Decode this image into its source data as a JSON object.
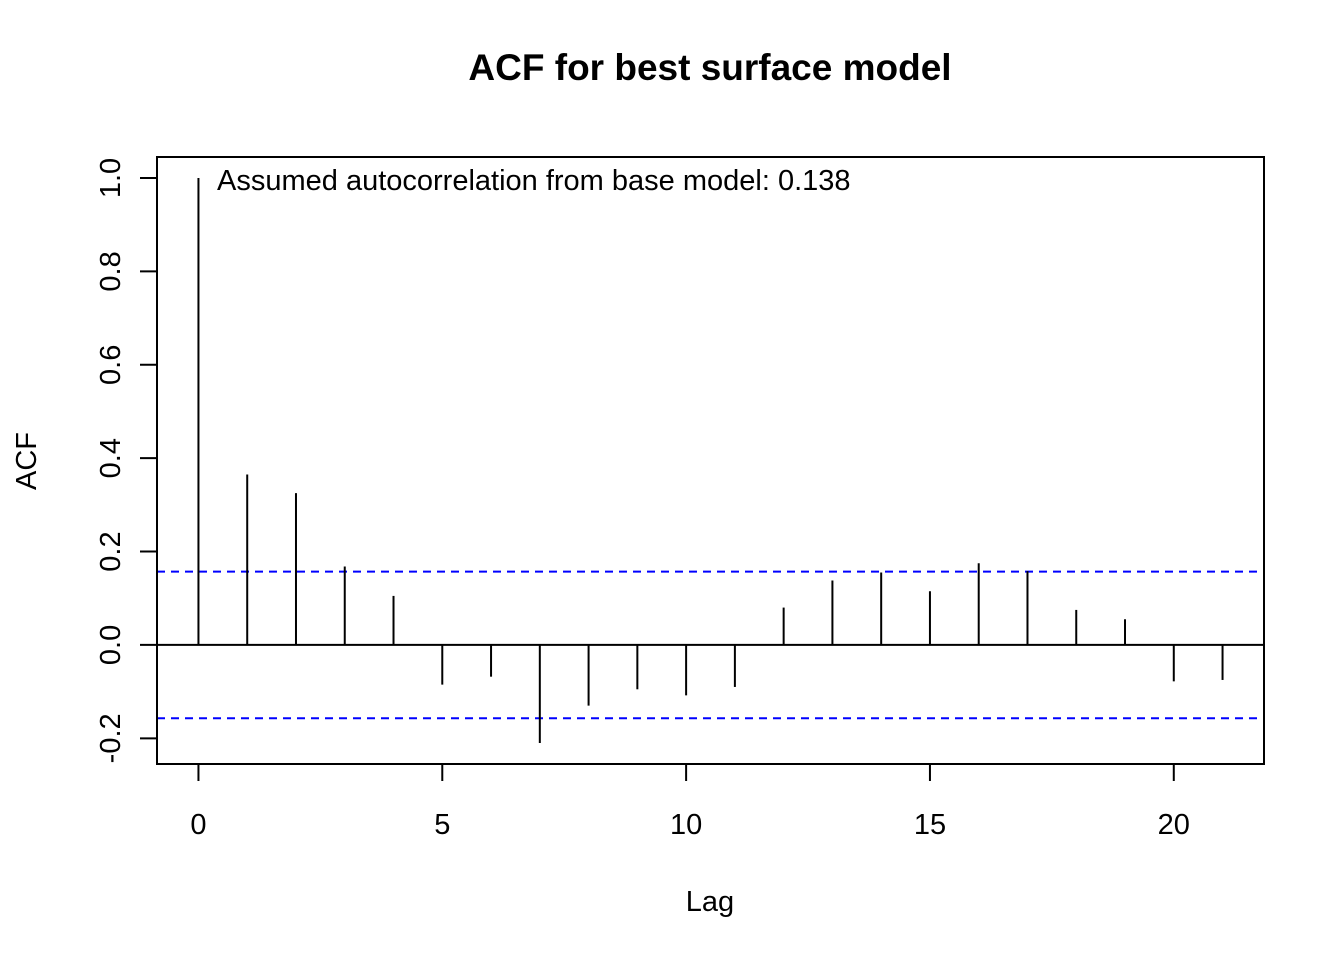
{
  "chart_data": {
    "type": "bar",
    "title": "ACF for best surface model",
    "xlabel": "Lag",
    "ylabel": "ACF",
    "annotation": "Assumed autocorrelation from base model: 0.138",
    "lags": [
      0,
      1,
      2,
      3,
      4,
      5,
      6,
      7,
      8,
      9,
      10,
      11,
      12,
      13,
      14,
      15,
      16,
      17,
      18,
      19,
      20,
      21
    ],
    "values": [
      1.0,
      0.365,
      0.325,
      0.168,
      0.105,
      -0.085,
      -0.068,
      -0.21,
      -0.13,
      -0.095,
      -0.108,
      -0.09,
      0.08,
      0.138,
      0.155,
      0.115,
      0.175,
      0.158,
      0.075,
      0.055,
      -0.078,
      -0.075
    ],
    "confidence_bound": 0.157,
    "xlim": [
      -0.85,
      21.85
    ],
    "ylim": [
      -0.255,
      1.045
    ],
    "x_ticks": [
      0,
      5,
      10,
      15,
      20
    ],
    "x_tick_labels": [
      "0",
      "5",
      "10",
      "15",
      "20"
    ],
    "y_ticks": [
      -0.2,
      0.0,
      0.2,
      0.4,
      0.6,
      0.8,
      1.0
    ],
    "y_tick_labels": [
      "-0.2",
      "0.0",
      "0.2",
      "0.4",
      "0.6",
      "0.8",
      "1.0"
    ],
    "colors": {
      "bars": "#000000",
      "confidence_line": "#0000ff",
      "zero_line": "#000000"
    }
  }
}
